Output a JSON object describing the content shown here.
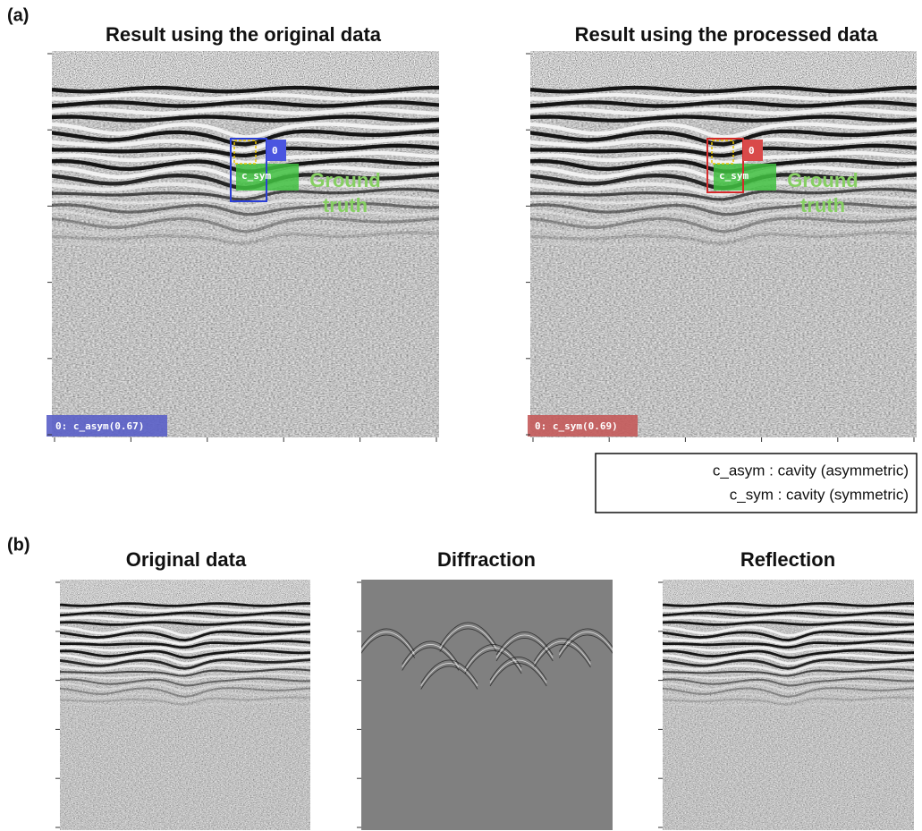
{
  "panel_a": {
    "label": "(a)",
    "plots": [
      {
        "title": "Result using the original data",
        "box_label": "0",
        "ground_truth_box": "c_sym",
        "annotation": [
          "Ground",
          "truth"
        ],
        "detection_label": "0: c_asym(0.67)"
      },
      {
        "title": "Result using the processed data",
        "box_label": "0",
        "ground_truth_box": "c_sym",
        "annotation": [
          "Ground",
          "truth"
        ],
        "detection_label": "0: c_sym(0.69)"
      }
    ],
    "legend": [
      "c_asym : cavity (asymmetric)",
      "c_sym : cavity (symmetric)"
    ]
  },
  "panel_b": {
    "label": "(b)",
    "plots": [
      {
        "title": "Original data"
      },
      {
        "title": "Diffraction"
      },
      {
        "title": "Reflection"
      }
    ]
  }
}
